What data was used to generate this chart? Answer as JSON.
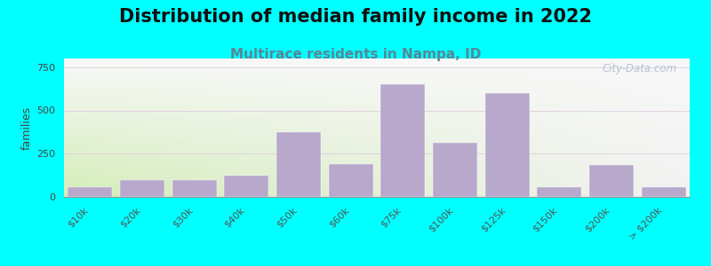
{
  "title": "Distribution of median family income in 2022",
  "subtitle": "Multirace residents in Nampa, ID",
  "ylabel": "families",
  "categories": [
    "$10k",
    "$20k",
    "$30k",
    "$40k",
    "$50k",
    "$60k",
    "$75k",
    "$100k",
    "$125k",
    "$150k",
    "$200k",
    "> $200k"
  ],
  "values": [
    55,
    95,
    95,
    125,
    375,
    190,
    650,
    315,
    600,
    55,
    185,
    55
  ],
  "bar_color": "#b8a9cc",
  "bar_edge_color": "#b8a9cc",
  "background_outer": "#00ffff",
  "bg_left_color": "#d4edb8",
  "bg_right_color": "#f2f2f2",
  "bg_top_color": "#f8f8f8",
  "ylim": [
    0,
    800
  ],
  "yticks": [
    0,
    250,
    500,
    750
  ],
  "grid_color": "#ddccdd",
  "title_fontsize": 15,
  "subtitle_fontsize": 11,
  "subtitle_color": "#558899",
  "ylabel_fontsize": 9,
  "watermark_text": "City-Data.com",
  "watermark_color": "#aabbcc"
}
